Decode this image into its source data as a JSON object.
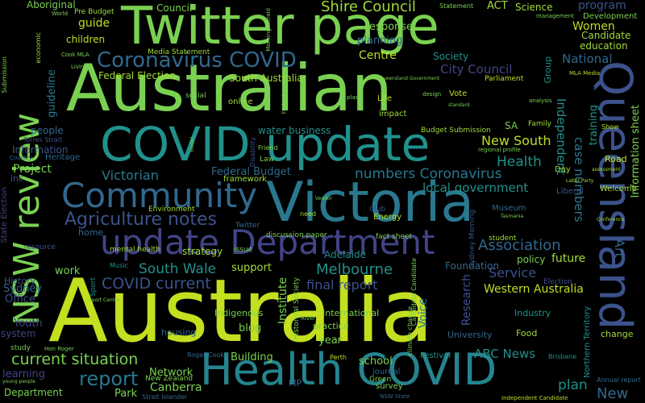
{
  "words": {
    "w01": "Australia",
    "w02": "Australian",
    "w03": "Victoria",
    "w04": "Twitter page",
    "w05": "COVID update",
    "w06": "Health COVID",
    "w07": "Queensland",
    "w08": "update Department",
    "w09": "Community",
    "w10": "NSW review",
    "w11": "Coronavirus COVID",
    "w12": "Agriculture notes",
    "w13": "Shire Council",
    "w14": "current situation",
    "w15": "COVID current",
    "w16": "report",
    "w17": "Victorian",
    "w18": "Melbourne",
    "w19": "Association",
    "w20": "South Wale",
    "w21": "New South",
    "w22": "Health",
    "w23": "numbers Coronavirus",
    "w24": "local government",
    "w25": "Federal Budget",
    "w26": "Federal Election",
    "w27": "South Australia",
    "w28": "Service",
    "w29": "final report",
    "w30": "Western Australia",
    "w31": "ABC News",
    "w32": "Women",
    "w33": "National",
    "w34": "program",
    "w35": "City Council",
    "w36": "Centre",
    "w37": "planning",
    "w38": "response",
    "w39": "guide",
    "w40": "children",
    "w41": "Project",
    "w42": "Information",
    "w43": "people",
    "w44": "Canberra",
    "w45": "Network",
    "w46": "Park",
    "w47": "Department",
    "w48": "Sydney",
    "w49": "Office",
    "w50": "Youth",
    "w51": "learning",
    "w52": "system",
    "w53": "History",
    "w54": "work",
    "w55": "support",
    "w56": "strategy",
    "w57": "future",
    "w58": "policy",
    "w59": "Foundation",
    "w60": "Adelaide",
    "w61": "school",
    "w62": "Building",
    "w63": "blog",
    "w64": "year",
    "w65": "Voice",
    "w66": "Institute",
    "w67": "Research",
    "w68": "Independent",
    "w69": "case numbers",
    "w70": "training",
    "w71": "Art",
    "w72": "Information sheet",
    "w73": "plan",
    "w74": "New",
    "w75": "Candidate",
    "w76": "education",
    "w77": "Development",
    "w78": "Science",
    "w79": "ACT",
    "w80": "guideline",
    "w81": "Aboriginal",
    "w82": "Council",
    "w83": "Pre Budget",
    "w84": "Statement",
    "w85": "Media Statement",
    "w86": "Society",
    "w87": "Parliament",
    "w88": "Group",
    "w89": "water business",
    "w90": "Heritage",
    "w91": "inc",
    "w92": "Torres Strait",
    "w93": "State Election",
    "w94": "Sport",
    "w95": "Music",
    "w96": "Indigenous",
    "w97": "housing",
    "w98": "Roger Cook",
    "w99": "International",
    "w100": "practice",
    "w101": "Industry",
    "w102": "University",
    "w103": "Food",
    "w104": "change",
    "w105": "Festival",
    "w106": "journal",
    "w107": "survey",
    "w108": "Green",
    "w109": "Perth",
    "w110": "NSW State",
    "w111": "Strait Islander",
    "w112": "New Zealand",
    "w113": "MP",
    "w114": "Brisbane",
    "w115": "Independent Candidate",
    "w116": "Annual report",
    "w117": "Northern Territory",
    "w118": "Road",
    "w119": "Day",
    "w120": "Welcome",
    "w121": "Liberal",
    "w122": "Museum",
    "w123": "Energy",
    "w124": "Club",
    "w125": "student",
    "w126": "Election",
    "w127": "mental health",
    "w128": "home",
    "w129": "Environment",
    "w130": "issue",
    "w131": "Twitter",
    "w132": "discussion paper",
    "w133": "fact sheet",
    "w134": "framework",
    "w135": "Law",
    "w136": "Friend",
    "w137": "SA",
    "w138": "Family",
    "w139": "Budget Submission",
    "w140": "Life",
    "w141": "impact",
    "w142": "online",
    "w143": "social",
    "w144": "Vote",
    "w145": "Show",
    "w146": "Submission",
    "w147": "economic",
    "w148": "Cook MLA",
    "w149": "Living",
    "w150": "World",
    "w151": "management",
    "w152": "MLA Media",
    "w153": "analysis",
    "w154": "regional profile",
    "w155": "standard",
    "w156": "design",
    "w157": "Labor Party",
    "w158": "assessment",
    "w159": "Country",
    "w160": "resource",
    "w161": "study",
    "w162": "Disability",
    "w163": "Historical Society",
    "w164": "climate change",
    "w165": "River",
    "w166": "Hon Roger",
    "w167": "young people",
    "w168": "Sydney Morning",
    "w169": "model",
    "w170": "Morning Herald",
    "w171": "place",
    "w172": "need",
    "w173": "Vendor",
    "w174": "Tasmania",
    "w175": "Conference",
    "w176": "Queensland Government",
    "w177": "Evaluation",
    "w178": "Sport Centre",
    "w179": "Candidate Candidate"
  }
}
